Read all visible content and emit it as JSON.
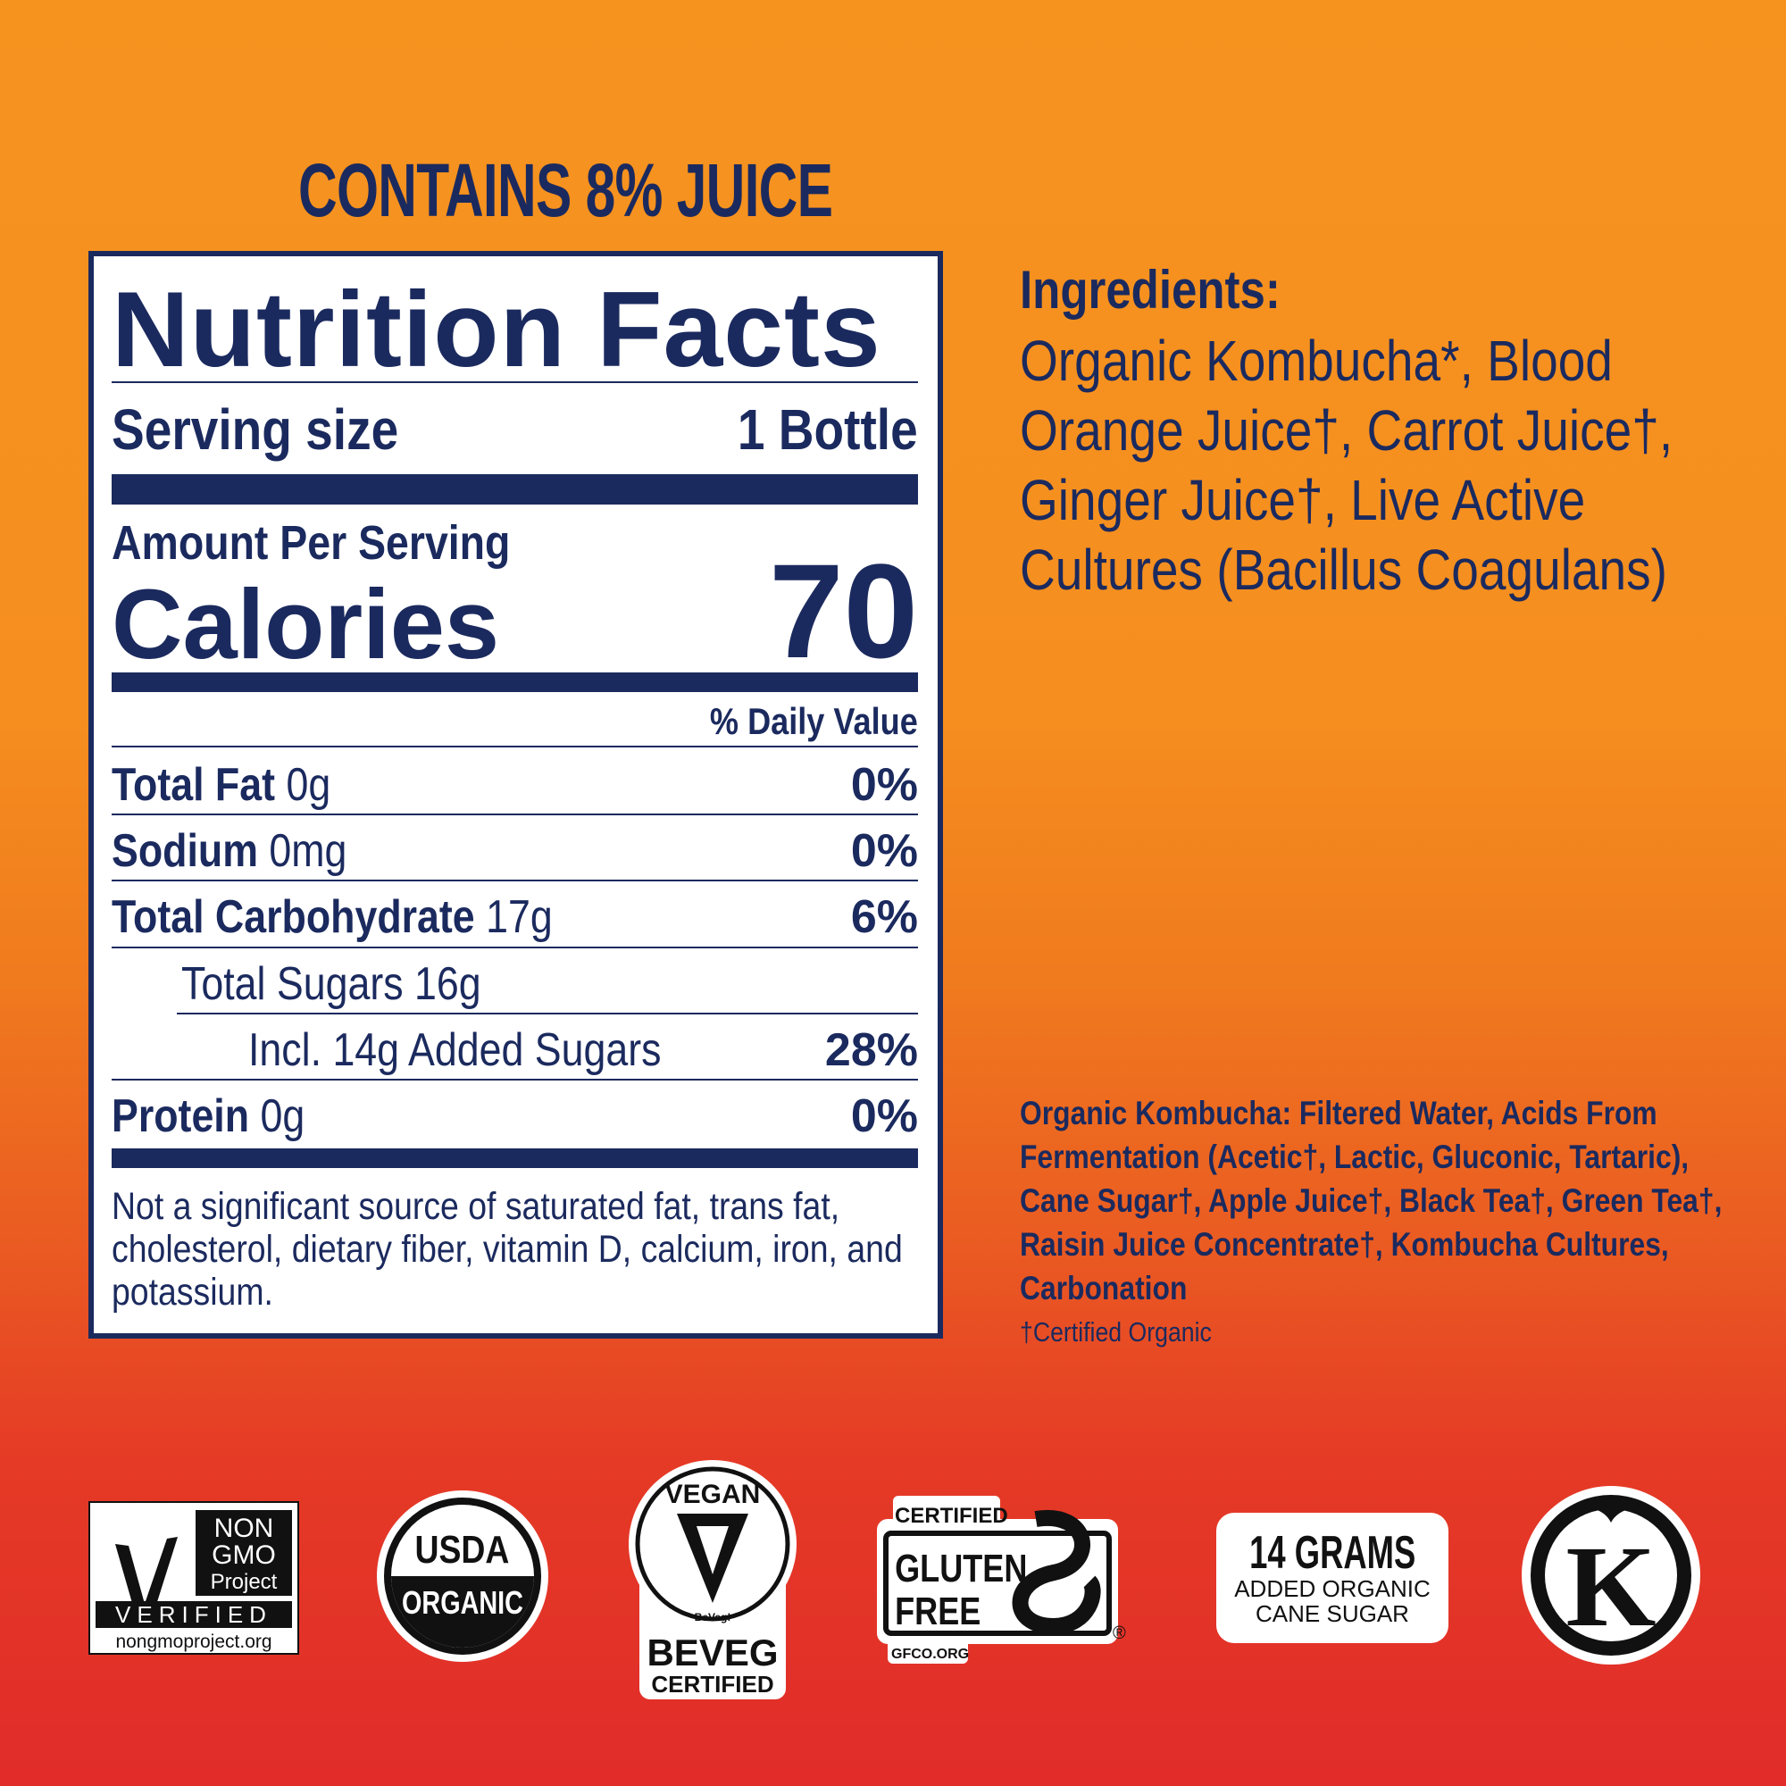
{
  "juice_claim": "CONTAINS 8% JUICE",
  "nutrition": {
    "title": "Nutrition Facts",
    "serving_label": "Serving size",
    "serving_value": "1 Bottle",
    "amount_per_serving": "Amount Per Serving",
    "calories_label": "Calories",
    "calories_value": "70",
    "dv_header": "% Daily Value",
    "rows": [
      {
        "name": "Total Fat",
        "amount": "0g",
        "dv": "0%"
      },
      {
        "name": "Sodium",
        "amount": "0mg",
        "dv": "0%"
      },
      {
        "name": "Total Carbohydrate",
        "amount": "17g",
        "dv": "6%"
      },
      {
        "name": "Total Sugars 16g",
        "amount": "",
        "dv": ""
      },
      {
        "name": "Incl. 14g Added Sugars",
        "amount": "",
        "dv": "28%"
      },
      {
        "name": "Protein",
        "amount": "0g",
        "dv": "0%"
      }
    ],
    "footnote": "Not a significant source of saturated fat, trans fat, cholesterol, dietary fiber, vitamin D, calcium, iron, and potassium."
  },
  "ingredients": {
    "heading": "Ingredients:",
    "text": "Organic Kombucha*, Blood Orange Juice†, Carrot Juice†, Ginger Juice†, Live Active Cultures (Bacillus Coagulans)"
  },
  "kombucha_detail": "Organic Kombucha: Filtered Water, Acids From Fermentation (Acetic†, Lactic, Gluconic, Tartaric), Cane Sugar†, Apple Juice†, Black Tea†, Green Tea†, Raisin Juice Concentrate†, Kombucha Cultures, Carbonation",
  "certified_note": "†Certified Organic",
  "badges": {
    "nongmo": {
      "line1": "NON",
      "line2": "GMO",
      "line3": "Project",
      "verified": "VERIFIED",
      "url": "nongmoproject.org"
    },
    "usda": {
      "top": "USDA",
      "bottom": "ORGANIC"
    },
    "vegan": {
      "top": "VEGAN",
      "small": "BeVeg!",
      "brand": "BEVEG",
      "bottom": "CERTIFIED"
    },
    "gluten": {
      "top": "CERTIFIED",
      "line1": "GLUTEN",
      "line2": "FREE",
      "url": "GFCO.ORG"
    },
    "sugar": {
      "big": "14 GRAMS",
      "line1": "ADDED ORGANIC",
      "line2": "CANE SUGAR"
    },
    "kosher": {
      "letter": "K"
    }
  },
  "colors": {
    "navy": "#1b2a5e",
    "orange": "#f6931f",
    "red": "#e12c2a"
  }
}
